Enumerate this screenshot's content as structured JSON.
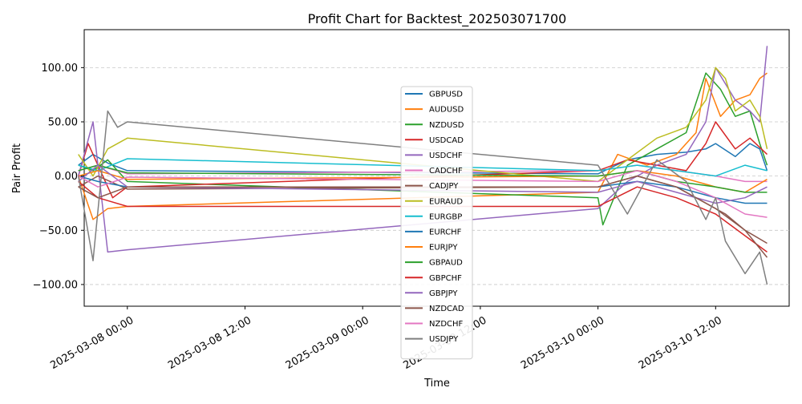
{
  "chart_data": {
    "type": "line",
    "title": "Profit Chart for Backtest_202503071700",
    "xlabel": "Time",
    "ylabel": "Pair Profit",
    "xlim": [
      "2025-03-07 19:36",
      "2025-03-10 19:30"
    ],
    "ylim": [
      -120,
      135
    ],
    "yticks": [
      -100,
      -50,
      0,
      50,
      100
    ],
    "ytick_labels": [
      "−100.00",
      "−50.00",
      "0.00",
      "50.00",
      "100.00"
    ],
    "xticks": [
      "2025-03-08 00:00",
      "2025-03-08 12:00",
      "2025-03-09 00:00",
      "2025-03-09 12:00",
      "2025-03-10 00:00",
      "2025-03-10 12:00"
    ],
    "xtick_labels": [
      "2025-03-08 00:00",
      "2025-03-08 12:00",
      "2025-03-09 00:00",
      "2025-03-09 12:00",
      "2025-03-10 00:00",
      "2025-03-10 12:00"
    ],
    "grid": "y-dashed",
    "legend_position": "center",
    "series": [
      {
        "name": "GBPUSD",
        "color": "#1f77b4",
        "x": [
          "2025-03-07 19:00",
          "2025-03-07 20:30",
          "2025-03-07 22:00",
          "2025-03-08 00:00",
          "2025-03-10 00:00",
          "2025-03-10 03:00",
          "2025-03-10 06:00",
          "2025-03-10 09:00",
          "2025-03-10 11:00",
          "2025-03-10 12:00",
          "2025-03-10 14:00",
          "2025-03-10 15:30",
          "2025-03-10 16:30",
          "2025-03-10 17:15"
        ],
        "y": [
          10,
          20,
          12,
          5,
          2,
          15,
          20,
          22,
          25,
          30,
          18,
          30,
          25,
          5
        ]
      },
      {
        "name": "AUDUSD",
        "color": "#ff7f0e",
        "x": [
          "2025-03-07 19:00",
          "2025-03-07 20:30",
          "2025-03-07 22:00",
          "2025-03-08 00:00",
          "2025-03-10 00:00",
          "2025-03-10 02:00",
          "2025-03-10 05:00",
          "2025-03-10 08:00",
          "2025-03-10 10:00",
          "2025-03-10 11:00",
          "2025-03-10 12:30",
          "2025-03-10 14:00",
          "2025-03-10 15:30",
          "2025-03-10 16:30",
          "2025-03-10 17:15"
        ],
        "y": [
          0,
          -40,
          -30,
          -28,
          -15,
          20,
          10,
          20,
          40,
          90,
          55,
          70,
          75,
          90,
          95
        ]
      },
      {
        "name": "NZDUSD",
        "color": "#2ca02c",
        "x": [
          "2025-03-07 19:00",
          "2025-03-07 20:30",
          "2025-03-07 22:00",
          "2025-03-08 00:00",
          "2025-03-10 00:00",
          "2025-03-10 00:30",
          "2025-03-10 03:00",
          "2025-03-10 06:00",
          "2025-03-10 09:00",
          "2025-03-10 11:00",
          "2025-03-10 12:30",
          "2025-03-10 14:00",
          "2025-03-10 15:30",
          "2025-03-10 16:30",
          "2025-03-10 17:15"
        ],
        "y": [
          10,
          5,
          15,
          -5,
          -20,
          -45,
          10,
          25,
          40,
          95,
          80,
          55,
          60,
          30,
          10
        ]
      },
      {
        "name": "USDCAD",
        "color": "#d62728",
        "x": [
          "2025-03-07 19:00",
          "2025-03-07 20:00",
          "2025-03-07 21:00",
          "2025-03-07 22:30",
          "2025-03-08 00:00",
          "2025-03-10 00:00",
          "2025-03-10 03:00",
          "2025-03-10 06:00",
          "2025-03-10 09:00",
          "2025-03-10 11:00",
          "2025-03-10 12:00",
          "2025-03-10 14:00",
          "2025-03-10 15:30",
          "2025-03-10 17:15"
        ],
        "y": [
          0,
          30,
          10,
          -20,
          -10,
          5,
          15,
          10,
          5,
          30,
          50,
          25,
          35,
          20
        ]
      },
      {
        "name": "USDCHF",
        "color": "#9467bd",
        "x": [
          "2025-03-07 19:00",
          "2025-03-07 20:30",
          "2025-03-07 22:00",
          "2025-03-08 00:00",
          "2025-03-10 00:00",
          "2025-03-10 03:00",
          "2025-03-10 06:00",
          "2025-03-10 09:00",
          "2025-03-10 11:00",
          "2025-03-10 12:00",
          "2025-03-10 14:00",
          "2025-03-10 15:30",
          "2025-03-10 16:30",
          "2025-03-10 17:15"
        ],
        "y": [
          0,
          50,
          -70,
          -68,
          -30,
          -5,
          10,
          20,
          50,
          100,
          70,
          60,
          50,
          120
        ]
      },
      {
        "name": "CADCHF",
        "color": "#e377c2",
        "x": [
          "2025-03-07 19:00",
          "2025-03-07 21:00",
          "2025-03-08 00:00",
          "2025-03-10 00:00",
          "2025-03-10 04:00",
          "2025-03-10 08:00",
          "2025-03-10 12:00",
          "2025-03-10 15:00",
          "2025-03-10 17:15"
        ],
        "y": [
          5,
          10,
          2,
          5,
          10,
          5,
          0,
          -5,
          -5
        ]
      },
      {
        "name": "CADJPY",
        "color": "#8c564b",
        "x": [
          "2025-03-07 19:00",
          "2025-03-07 21:00",
          "2025-03-08 00:00",
          "2025-03-10 00:00",
          "2025-03-10 04:00",
          "2025-03-10 08:00",
          "2025-03-10 11:00",
          "2025-03-10 13:00",
          "2025-03-10 15:00",
          "2025-03-10 17:15"
        ],
        "y": [
          -10,
          0,
          -12,
          -10,
          0,
          -10,
          -25,
          -35,
          -50,
          -62
        ]
      },
      {
        "name": "EURAUD",
        "color": "#bcbd22",
        "x": [
          "2025-03-07 19:00",
          "2025-03-07 20:30",
          "2025-03-07 22:00",
          "2025-03-08 00:00",
          "2025-03-10 00:00",
          "2025-03-10 03:00",
          "2025-03-10 06:00",
          "2025-03-10 09:00",
          "2025-03-10 11:00",
          "2025-03-10 12:00",
          "2025-03-10 13:00",
          "2025-03-10 14:00",
          "2025-03-10 15:30",
          "2025-03-10 16:30",
          "2025-03-10 17:15"
        ],
        "y": [
          20,
          0,
          25,
          35,
          -5,
          15,
          35,
          45,
          70,
          100,
          90,
          60,
          70,
          55,
          25
        ]
      },
      {
        "name": "EURGBP",
        "color": "#17becf",
        "x": [
          "2025-03-07 19:00",
          "2025-03-07 21:00",
          "2025-03-08 00:00",
          "2025-03-10 00:00",
          "2025-03-10 04:00",
          "2025-03-10 08:00",
          "2025-03-10 12:00",
          "2025-03-10 15:00",
          "2025-03-10 17:15"
        ],
        "y": [
          10,
          5,
          16,
          5,
          10,
          5,
          0,
          10,
          5
        ]
      },
      {
        "name": "EURCHF",
        "color": "#1f77b4",
        "x": [
          "2025-03-07 19:00",
          "2025-03-07 21:00",
          "2025-03-08 00:00",
          "2025-03-10 00:00",
          "2025-03-10 04:00",
          "2025-03-10 08:00",
          "2025-03-10 12:00",
          "2025-03-10 15:00",
          "2025-03-10 17:15"
        ],
        "y": [
          0,
          -5,
          -10,
          -10,
          -5,
          -10,
          -20,
          -25,
          -25
        ]
      },
      {
        "name": "EURJPY",
        "color": "#ff7f0e",
        "x": [
          "2025-03-07 19:00",
          "2025-03-07 21:00",
          "2025-03-08 00:00",
          "2025-03-10 00:00",
          "2025-03-10 04:00",
          "2025-03-10 08:00",
          "2025-03-10 12:00",
          "2025-03-10 15:00",
          "2025-03-10 17:15"
        ],
        "y": [
          0,
          5,
          -3,
          0,
          5,
          0,
          -10,
          -15,
          -3
        ]
      },
      {
        "name": "GBPAUD",
        "color": "#2ca02c",
        "x": [
          "2025-03-07 19:00",
          "2025-03-07 21:00",
          "2025-03-08 00:00",
          "2025-03-10 00:00",
          "2025-03-10 04:00",
          "2025-03-10 08:00",
          "2025-03-10 12:00",
          "2025-03-10 15:00",
          "2025-03-10 17:15"
        ],
        "y": [
          5,
          10,
          3,
          0,
          5,
          -5,
          -10,
          -15,
          -15
        ]
      },
      {
        "name": "GBPCHF",
        "color": "#d62728",
        "x": [
          "2025-03-07 19:00",
          "2025-03-07 21:00",
          "2025-03-08 00:00",
          "2025-03-10 00:00",
          "2025-03-10 04:00",
          "2025-03-10 08:00",
          "2025-03-10 12:00",
          "2025-03-10 15:00",
          "2025-03-10 17:15"
        ],
        "y": [
          -5,
          -20,
          -28,
          -28,
          -10,
          -20,
          -35,
          -55,
          -70
        ]
      },
      {
        "name": "GBPJPY",
        "color": "#9467bd",
        "x": [
          "2025-03-07 19:00",
          "2025-03-07 21:00",
          "2025-03-08 00:00",
          "2025-03-10 00:00",
          "2025-03-10 04:00",
          "2025-03-10 08:00",
          "2025-03-10 12:00",
          "2025-03-10 15:00",
          "2025-03-10 17:15"
        ],
        "y": [
          -5,
          10,
          -10,
          -15,
          -5,
          -15,
          -25,
          -20,
          -10
        ]
      },
      {
        "name": "NZDCAD",
        "color": "#8c564b",
        "x": [
          "2025-03-07 19:00",
          "2025-03-07 21:00",
          "2025-03-08 00:00",
          "2025-03-10 00:00",
          "2025-03-10 04:00",
          "2025-03-10 08:00",
          "2025-03-10 12:00",
          "2025-03-10 15:00",
          "2025-03-10 17:15"
        ],
        "y": [
          -10,
          -20,
          -10,
          -10,
          0,
          -10,
          -30,
          -50,
          -75
        ]
      },
      {
        "name": "NZDCHF",
        "color": "#e377c2",
        "x": [
          "2025-03-07 19:00",
          "2025-03-07 21:00",
          "2025-03-08 00:00",
          "2025-03-10 00:00",
          "2025-03-10 04:00",
          "2025-03-10 08:00",
          "2025-03-10 12:00",
          "2025-03-10 15:00",
          "2025-03-10 17:15"
        ],
        "y": [
          0,
          -10,
          -1,
          -5,
          5,
          -5,
          -20,
          -35,
          -38
        ]
      },
      {
        "name": "USDJPY",
        "color": "#7f7f7f",
        "x": [
          "2025-03-07 19:00",
          "2025-03-07 20:30",
          "2025-03-07 22:00",
          "2025-03-07 23:00",
          "2025-03-08 00:00",
          "2025-03-10 00:00",
          "2025-03-10 03:00",
          "2025-03-10 06:00",
          "2025-03-10 09:00",
          "2025-03-10 11:00",
          "2025-03-10 12:00",
          "2025-03-10 13:00",
          "2025-03-10 15:00",
          "2025-03-10 16:30",
          "2025-03-10 17:15"
        ],
        "y": [
          0,
          -78,
          60,
          45,
          50,
          10,
          -35,
          15,
          -5,
          -40,
          -20,
          -60,
          -90,
          -70,
          -100
        ]
      }
    ]
  }
}
